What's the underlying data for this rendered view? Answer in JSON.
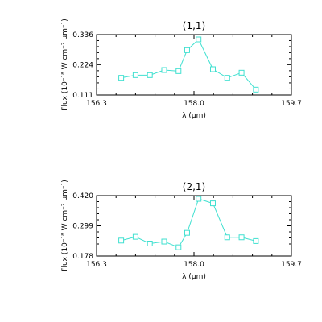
{
  "chart_data": [
    {
      "type": "line",
      "title": "(1,1)",
      "xlabel": "λ (μm)",
      "ylabel": "Flux (10⁻¹⁸ W cm⁻² μm⁻¹)",
      "xlim": [
        156.3,
        159.7
      ],
      "ylim": [
        0.111,
        0.336
      ],
      "xticks": [
        "156.3",
        "158.0",
        "159.7"
      ],
      "yticks": [
        "0.111",
        "0.224",
        "0.336"
      ],
      "line_color": "#40e0d0",
      "marker": "square",
      "x": [
        156.73,
        156.98,
        157.23,
        157.48,
        157.73,
        157.88,
        158.08,
        158.33,
        158.58,
        158.83,
        159.08
      ],
      "y": [
        0.175,
        0.185,
        0.185,
        0.204,
        0.2,
        0.278,
        0.318,
        0.207,
        0.175,
        0.194,
        0.131
      ]
    },
    {
      "type": "line",
      "title": "(2,1)",
      "xlabel": "λ (μm)",
      "ylabel": "Flux (10⁻¹⁸ W cm⁻² μm⁻¹)",
      "xlim": [
        156.3,
        159.7
      ],
      "ylim": [
        0.178,
        0.42
      ],
      "xticks": [
        "156.3",
        "158.0",
        "159.7"
      ],
      "yticks": [
        "0.178",
        "0.299",
        "0.420"
      ],
      "line_color": "#40e0d0",
      "marker": "square",
      "x": [
        156.73,
        156.98,
        157.23,
        157.48,
        157.73,
        157.88,
        158.08,
        158.33,
        158.58,
        158.83,
        159.08
      ],
      "y": [
        0.24,
        0.255,
        0.228,
        0.236,
        0.213,
        0.271,
        0.407,
        0.389,
        0.253,
        0.253,
        0.238
      ]
    }
  ]
}
